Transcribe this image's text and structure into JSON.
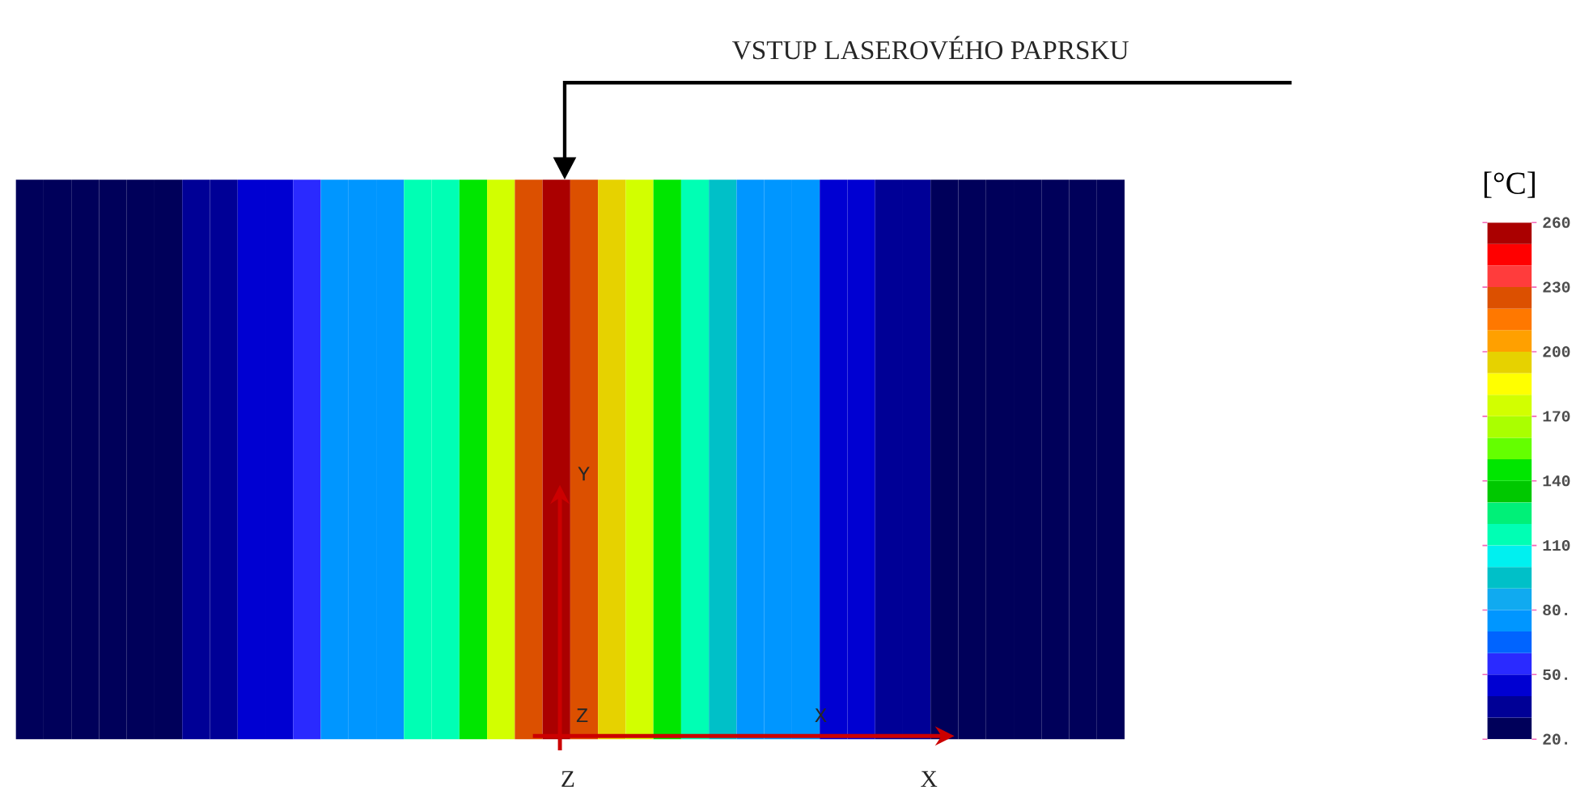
{
  "chart_data": {
    "type": "heatmap",
    "categories": [
      null,
      null,
      null,
      null,
      null,
      null,
      null,
      null,
      null,
      null,
      null,
      null,
      null,
      null,
      null,
      null,
      null,
      null,
      null,
      null,
      null,
      null,
      null,
      null,
      null,
      null,
      null,
      null,
      null,
      null,
      null,
      null,
      null,
      null,
      null,
      null,
      null,
      null,
      null,
      null
    ],
    "y_categories": [
      null
    ],
    "cells": [
      [
        20,
        20,
        20,
        20,
        25,
        25,
        32,
        32,
        40,
        40,
        50,
        70,
        70,
        70,
        115,
        115,
        145,
        170,
        220,
        250,
        220,
        190,
        170,
        145,
        115,
        95,
        70,
        70,
        70,
        40,
        40,
        32,
        32,
        25,
        25,
        25,
        20,
        20,
        20,
        20
      ]
    ],
    "clim": [
      20,
      260
    ],
    "cticks": [
      {
        "value": 20,
        "label": "20."
      },
      {
        "value": 50,
        "label": "50."
      },
      {
        "value": 80,
        "label": "80."
      },
      110,
      140,
      170,
      200,
      230,
      260
    ],
    "clabel": "[°C]",
    "annotations": [
      "VSTUP LASEROVÉHO PAPRSKU",
      "Y",
      "Z",
      "X",
      "Z",
      "X"
    ]
  }
}
